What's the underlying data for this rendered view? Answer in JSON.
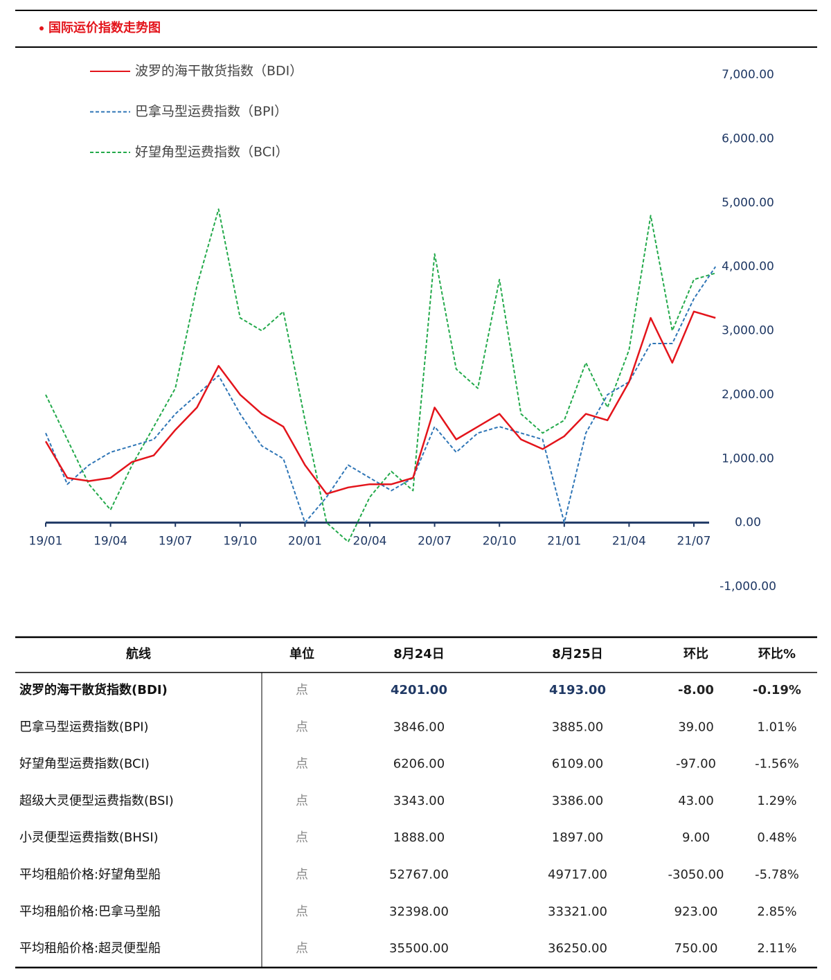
{
  "header": {
    "title": "国际运价指数走势图"
  },
  "chart_data": {
    "type": "line",
    "x": [
      "19/01",
      "19/02",
      "19/03",
      "19/04",
      "19/05",
      "19/06",
      "19/07",
      "19/08",
      "19/09",
      "19/10",
      "19/11",
      "19/12",
      "20/01",
      "20/02",
      "20/03",
      "20/04",
      "20/05",
      "20/06",
      "20/07",
      "20/08",
      "20/09",
      "20/10",
      "20/11",
      "20/12",
      "21/01",
      "21/02",
      "21/03",
      "21/04",
      "21/05",
      "21/06",
      "21/07",
      "21/08"
    ],
    "xticks": [
      "19/01",
      "19/04",
      "19/07",
      "19/10",
      "20/01",
      "20/04",
      "20/07",
      "20/10",
      "21/01",
      "21/04",
      "21/07"
    ],
    "ylim": [
      -1000,
      7000
    ],
    "yticks": [
      {
        "value": -1000,
        "label": "-1,000.00"
      },
      {
        "value": 0,
        "label": "0.00"
      },
      {
        "value": 1000,
        "label": "1,000.00"
      },
      {
        "value": 2000,
        "label": "2,000.00"
      },
      {
        "value": 3000,
        "label": "3,000.00"
      },
      {
        "value": 4000,
        "label": "4,000.00"
      },
      {
        "value": 5000,
        "label": "5,000.00"
      },
      {
        "value": 6000,
        "label": "6,000.00"
      },
      {
        "value": 7000,
        "label": "7,000.00"
      }
    ],
    "series": [
      {
        "name": "波罗的海干散货指数（BDI）",
        "color": "#e3141b",
        "style": "solid",
        "values": [
          1270,
          700,
          650,
          700,
          950,
          1050,
          1450,
          1800,
          2450,
          2000,
          1700,
          1500,
          900,
          450,
          550,
          600,
          600,
          700,
          1800,
          1300,
          1500,
          1700,
          1300,
          1150,
          1350,
          1700,
          1600,
          2200,
          3200,
          2500,
          3300,
          3200
        ]
      },
      {
        "name": "巴拿马型运费指数（BPI）",
        "color": "#2e75b6",
        "style": "dashed",
        "values": [
          1400,
          600,
          900,
          1100,
          1200,
          1300,
          1700,
          2000,
          2300,
          1700,
          1200,
          1000,
          0,
          400,
          900,
          700,
          500,
          700,
          1500,
          1100,
          1400,
          1500,
          1400,
          1300,
          0,
          1400,
          2000,
          2200,
          2800,
          2800,
          3500,
          4000
        ]
      },
      {
        "name": "好望角型运费指数（BCI）",
        "color": "#22a94a",
        "style": "dashed",
        "values": [
          2000,
          1300,
          600,
          200,
          900,
          1500,
          2100,
          3700,
          4900,
          3200,
          3000,
          3300,
          1600,
          0,
          -300,
          400,
          800,
          500,
          4200,
          2400,
          2100,
          3800,
          1700,
          1400,
          1600,
          2500,
          1800,
          2700,
          4800,
          3000,
          3800,
          3900
        ]
      }
    ]
  },
  "table": {
    "columns": [
      "航线",
      "单位",
      "8月24日",
      "8月25日",
      "环比",
      "环比%"
    ],
    "rows": [
      [
        "波罗的海干散货指数(BDI)",
        "点",
        "4201.00",
        "4193.00",
        "-8.00",
        "-0.19%"
      ],
      [
        "巴拿马型运费指数(BPI)",
        "点",
        "3846.00",
        "3885.00",
        "39.00",
        "1.01%"
      ],
      [
        "好望角型运费指数(BCI)",
        "点",
        "6206.00",
        "6109.00",
        "-97.00",
        "-1.56%"
      ],
      [
        "超级大灵便型运费指数(BSI)",
        "点",
        "3343.00",
        "3386.00",
        "43.00",
        "1.29%"
      ],
      [
        "小灵便型运费指数(BHSI)",
        "点",
        "1888.00",
        "1897.00",
        "9.00",
        "0.48%"
      ],
      [
        "平均租船价格:好望角型船",
        "点",
        "52767.00",
        "49717.00",
        "-3050.00",
        "-5.78%"
      ],
      [
        "平均租船价格:巴拿马型船",
        "点",
        "32398.00",
        "33321.00",
        "923.00",
        "2.85%"
      ],
      [
        "平均租船价格:超灵便型船",
        "点",
        "35500.00",
        "36250.00",
        "750.00",
        "2.11%"
      ]
    ]
  }
}
